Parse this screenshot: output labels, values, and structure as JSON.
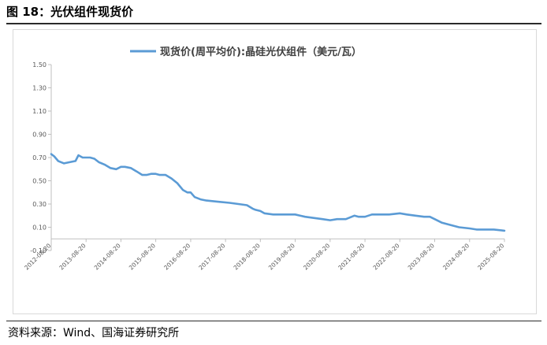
{
  "figure": {
    "title": "图 18：光伏组件现货价",
    "source": "资料来源：Wind、国海证券研究所"
  },
  "colors": {
    "series": "#5b9bd5",
    "axis": "#bfbfbf",
    "text": "#595959"
  },
  "chart_data": {
    "type": "line",
    "title": "",
    "xlabel": "",
    "ylabel": "",
    "ylim": [
      -0.1,
      1.5
    ],
    "yticks": [
      -0.1,
      0.1,
      0.3,
      0.5,
      0.7,
      0.9,
      1.1,
      1.3,
      1.5
    ],
    "ytick_labels": [
      "-0.10",
      "0.10",
      "0.30",
      "0.50",
      "0.70",
      "0.90",
      "1.10",
      "1.30",
      "1.50"
    ],
    "xlim": [
      "2012-08-20",
      "2025-08-20"
    ],
    "xtick_labels": [
      "2012-08-20",
      "2013-08-20",
      "2014-08-20",
      "2015-08-20",
      "2016-08-20",
      "2017-08-20",
      "2018-08-20",
      "2019-08-20",
      "2020-08-20",
      "2021-08-20",
      "2022-08-20",
      "2023-08-20",
      "2024-08-20",
      "2025-08-20"
    ],
    "grid": false,
    "legend": "top",
    "series": [
      {
        "name": "现货价(周平均价):晶硅光伏组件（美元/瓦）",
        "x": [
          "2012-08-20",
          "2012-09-20",
          "2012-11-01",
          "2013-01-01",
          "2013-03-01",
          "2013-05-01",
          "2013-06-01",
          "2013-07-15",
          "2013-08-20",
          "2013-10-01",
          "2013-11-15",
          "2014-01-01",
          "2014-03-01",
          "2014-05-01",
          "2014-07-01",
          "2014-08-20",
          "2014-10-01",
          "2014-12-01",
          "2015-02-01",
          "2015-04-01",
          "2015-05-15",
          "2015-07-01",
          "2015-08-20",
          "2015-10-01",
          "2015-12-01",
          "2016-02-01",
          "2016-04-01",
          "2016-06-01",
          "2016-07-15",
          "2016-08-20",
          "2016-10-01",
          "2016-12-01",
          "2017-02-01",
          "2017-06-01",
          "2017-10-01",
          "2018-01-01",
          "2018-04-01",
          "2018-06-01",
          "2018-07-01",
          "2018-08-20",
          "2018-10-01",
          "2019-01-01",
          "2019-04-01",
          "2019-08-20",
          "2019-12-01",
          "2020-03-01",
          "2020-06-01",
          "2020-08-20",
          "2020-11-01",
          "2021-02-01",
          "2021-05-01",
          "2021-06-15",
          "2021-08-20",
          "2021-11-01",
          "2022-02-01",
          "2022-05-01",
          "2022-08-20",
          "2022-11-01",
          "2023-02-01",
          "2023-05-01",
          "2023-07-01",
          "2023-08-20",
          "2023-11-01",
          "2024-02-01",
          "2024-05-01",
          "2024-08-20",
          "2024-11-01",
          "2025-02-01",
          "2025-05-01",
          "2025-08-20"
        ],
        "y": [
          0.73,
          0.71,
          0.67,
          0.65,
          0.66,
          0.67,
          0.72,
          0.7,
          0.7,
          0.7,
          0.69,
          0.66,
          0.64,
          0.61,
          0.6,
          0.62,
          0.62,
          0.61,
          0.58,
          0.55,
          0.55,
          0.56,
          0.56,
          0.55,
          0.55,
          0.52,
          0.48,
          0.42,
          0.4,
          0.4,
          0.36,
          0.34,
          0.33,
          0.32,
          0.31,
          0.3,
          0.29,
          0.26,
          0.25,
          0.24,
          0.22,
          0.21,
          0.21,
          0.21,
          0.19,
          0.18,
          0.17,
          0.16,
          0.17,
          0.17,
          0.2,
          0.19,
          0.19,
          0.21,
          0.21,
          0.21,
          0.22,
          0.21,
          0.2,
          0.19,
          0.19,
          0.17,
          0.14,
          0.12,
          0.1,
          0.09,
          0.08,
          0.08,
          0.08,
          0.07
        ]
      }
    ]
  }
}
